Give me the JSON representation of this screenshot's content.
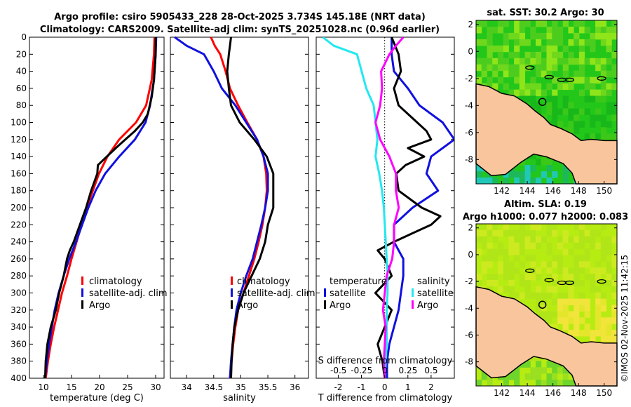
{
  "figure": {
    "title_line1": "Argo profile: csiro 5905433_228 28-Oct-2025 3.734S 145.18E (NRT data)",
    "title_line2": "Climatology: CARS2009. Satellite-adj clim: synTS_20251028.nc (0.96d earlier)",
    "credit": "©IMOS 02-Nov-2025 11:42:15"
  },
  "colors": {
    "climatology": "#ff0000",
    "satellite": "#1010e0",
    "argo": "#000000",
    "t_satellite_diff": "#22e8f0",
    "s_satellite_diff": "#ff00ff",
    "land": "#f9c59c",
    "ocean_sst": "#22c71a",
    "ocean_sla": "#b7ec12"
  },
  "chart_data": [
    {
      "id": "temperature",
      "type": "line",
      "ylabel": "",
      "xlabel": "temperature (deg C)",
      "xlim": [
        7.5,
        31.5
      ],
      "ylim": [
        0,
        400
      ],
      "y_reversed": true,
      "xticks": [
        "10",
        "15",
        "20",
        "25",
        "30"
      ],
      "xtick_values": [
        10,
        15,
        20,
        25,
        30
      ],
      "yticks": [
        "0",
        "20",
        "40",
        "60",
        "80",
        "100",
        "120",
        "140",
        "160",
        "180",
        "200",
        "220",
        "240",
        "260",
        "280",
        "300",
        "320",
        "340",
        "360",
        "380",
        "400"
      ],
      "ytick_values": [
        0,
        20,
        40,
        60,
        80,
        100,
        120,
        140,
        160,
        180,
        200,
        220,
        240,
        260,
        280,
        300,
        320,
        340,
        360,
        380,
        400
      ],
      "legend": {
        "placement": "lower-right",
        "entries": [
          "climatology",
          "satellite-adj. clim",
          "Argo"
        ]
      },
      "series": [
        {
          "name": "climatology",
          "color_key": "climatology",
          "depth": [
            0,
            20,
            50,
            80,
            100,
            120,
            140,
            160,
            180,
            200,
            220,
            240,
            260,
            280,
            300,
            320,
            340,
            360,
            380,
            400
          ],
          "values": [
            29.8,
            29.7,
            29.3,
            28.3,
            26.5,
            23.5,
            21.4,
            19.9,
            18.8,
            17.7,
            16.8,
            15.9,
            15.0,
            14.2,
            13.3,
            12.6,
            11.9,
            11.3,
            10.8,
            10.4
          ]
        },
        {
          "name": "satellite-adj. clim",
          "color_key": "satellite",
          "depth": [
            0,
            20,
            50,
            80,
            100,
            120,
            140,
            160,
            180,
            200,
            220,
            240,
            260,
            280,
            300,
            320,
            340,
            360,
            380,
            400
          ],
          "values": [
            30.1,
            30.0,
            29.7,
            29.0,
            28.2,
            26.3,
            23.5,
            21.0,
            19.3,
            18.0,
            16.9,
            15.8,
            14.6,
            13.6,
            12.7,
            12.0,
            11.5,
            11.0,
            10.6,
            10.3
          ]
        },
        {
          "name": "Argo",
          "color_key": "argo",
          "depth": [
            0,
            20,
            50,
            70,
            90,
            100,
            110,
            120,
            130,
            140,
            150,
            160,
            180,
            200,
            220,
            240,
            250,
            260,
            280,
            300,
            320,
            340,
            360,
            380,
            400
          ],
          "values": [
            30.0,
            30.0,
            29.7,
            29.3,
            28.6,
            27.7,
            26.3,
            24.6,
            22.9,
            21.3,
            19.7,
            19.6,
            18.5,
            17.6,
            16.5,
            15.4,
            14.7,
            14.2,
            13.6,
            12.8,
            12.2,
            11.3,
            10.7,
            10.4,
            10.3
          ]
        }
      ]
    },
    {
      "id": "salinity",
      "type": "line",
      "xlabel": "salinity",
      "xlim": [
        33.7,
        36.25
      ],
      "ylim": [
        0,
        400
      ],
      "y_reversed": true,
      "xticks": [
        "34",
        "34.5",
        "35",
        "35.5",
        "36"
      ],
      "xtick_values": [
        34,
        34.5,
        35,
        35.5,
        36
      ],
      "legend": {
        "placement": "lower-right",
        "entries": [
          "climatology",
          "satellite-adj. clim",
          "Argo"
        ]
      },
      "series": [
        {
          "name": "climatology",
          "color_key": "climatology",
          "depth": [
            0,
            10,
            20,
            40,
            60,
            80,
            100,
            120,
            140,
            160,
            180,
            200,
            220,
            240,
            260,
            280,
            300,
            320,
            340,
            360,
            380,
            400
          ],
          "values": [
            34.45,
            34.52,
            34.62,
            34.72,
            34.8,
            34.95,
            35.12,
            35.3,
            35.42,
            35.47,
            35.48,
            35.45,
            35.4,
            35.33,
            35.25,
            35.15,
            35.05,
            34.95,
            34.9,
            34.86,
            34.83,
            34.8
          ]
        },
        {
          "name": "satellite-adj. clim",
          "color_key": "satellite",
          "depth": [
            0,
            10,
            20,
            40,
            60,
            80,
            100,
            120,
            140,
            160,
            180,
            200,
            220,
            240,
            260,
            280,
            300,
            320,
            340,
            360,
            380,
            400
          ],
          "values": [
            33.78,
            34.0,
            34.32,
            34.5,
            34.65,
            34.9,
            35.1,
            35.3,
            35.42,
            35.5,
            35.5,
            35.45,
            35.38,
            35.3,
            35.22,
            35.1,
            35.0,
            34.92,
            34.88,
            34.85,
            34.82,
            34.8
          ]
        },
        {
          "name": "Argo",
          "color_key": "argo",
          "depth": [
            0,
            10,
            20,
            40,
            60,
            80,
            100,
            120,
            140,
            160,
            180,
            200,
            220,
            240,
            260,
            280,
            300,
            320,
            340,
            360,
            380,
            400
          ],
          "values": [
            34.82,
            34.8,
            34.78,
            34.75,
            34.78,
            34.82,
            34.98,
            35.25,
            35.48,
            35.6,
            35.6,
            35.6,
            35.5,
            35.45,
            35.35,
            35.2,
            35.05,
            34.95,
            34.88,
            34.85,
            34.83,
            34.82
          ]
        }
      ]
    },
    {
      "id": "differences",
      "type": "line",
      "xlabel_bottom": "T difference from climatology",
      "xlabel_top": "S difference from climatology",
      "xlim_t": [
        -2.95,
        3.0
      ],
      "xlim_s": [
        -0.74,
        0.75
      ],
      "ylim": [
        0,
        400
      ],
      "y_reversed": true,
      "xticks_t": [
        "-2",
        "-1",
        "0",
        "1",
        "2"
      ],
      "xtick_values_t": [
        -2,
        -1,
        0,
        1,
        2
      ],
      "xticks_s": [
        "-0.5",
        "-0.25",
        "0",
        "0.25",
        "0.5"
      ],
      "xtick_values_s": [
        -0.5,
        -0.25,
        0,
        0.25,
        0.5
      ],
      "legend_temperature": {
        "title": "temperature",
        "placement": "lower-left",
        "entries": [
          "satellite",
          "Argo"
        ]
      },
      "legend_salinity": {
        "title": "salinity",
        "placement": "lower-right",
        "entries": [
          "satellite",
          "Argo"
        ]
      },
      "series": [
        {
          "name": "T satellite",
          "axis": "t",
          "color_key": "satellite",
          "depth": [
            0,
            20,
            40,
            60,
            80,
            100,
            120,
            140,
            160,
            180,
            200,
            220,
            240,
            260,
            280,
            300,
            320,
            340,
            360,
            380,
            400
          ],
          "values": [
            0.3,
            0.3,
            0.4,
            1.0,
            1.5,
            2.5,
            3.0,
            2.0,
            1.8,
            2.3,
            1.2,
            0.4,
            0.4,
            0.8,
            0.8,
            0.7,
            0.6,
            0.4,
            0.2,
            0.1,
            0.1
          ]
        },
        {
          "name": "T Argo",
          "axis": "t",
          "color_key": "argo",
          "depth": [
            0,
            20,
            40,
            60,
            80,
            100,
            110,
            120,
            130,
            140,
            150,
            160,
            180,
            200,
            210,
            220,
            230,
            240,
            250,
            260,
            280,
            300,
            320,
            340,
            360,
            380,
            400
          ],
          "values": [
            0.3,
            0.6,
            0.7,
            0.4,
            0.6,
            1.4,
            1.8,
            2.0,
            1.0,
            1.7,
            0.9,
            0.5,
            0.6,
            1.6,
            2.4,
            2.0,
            1.2,
            0.4,
            -0.3,
            0.0,
            0.3,
            -0.4,
            0.3,
            0.0,
            -0.3,
            -0.1,
            0.0
          ]
        },
        {
          "name": "S satellite",
          "axis": "s",
          "color_key": "t_satellite_diff",
          "depth": [
            0,
            10,
            20,
            40,
            60,
            80,
            100,
            120,
            140,
            160,
            180,
            200,
            220,
            240,
            260,
            280,
            300,
            320,
            340,
            360,
            380,
            400
          ],
          "values": [
            -0.67,
            -0.55,
            -0.3,
            -0.25,
            -0.2,
            -0.12,
            -0.1,
            -0.08,
            -0.1,
            -0.06,
            -0.03,
            -0.01,
            0.0,
            0.01,
            0.02,
            0.03,
            0.03,
            0.02,
            0.02,
            0.02,
            0.01,
            0.0
          ]
        },
        {
          "name": "S Argo",
          "axis": "s",
          "color_key": "s_satellite_diff",
          "depth": [
            0,
            10,
            20,
            40,
            60,
            80,
            100,
            120,
            140,
            160,
            180,
            200,
            220,
            240,
            260,
            280,
            300,
            320,
            340,
            360,
            380,
            400
          ],
          "values": [
            0.2,
            0.12,
            0.05,
            -0.04,
            -0.03,
            -0.05,
            -0.1,
            -0.05,
            0.05,
            0.12,
            0.12,
            0.15,
            0.1,
            0.1,
            0.08,
            0.02,
            0.0,
            -0.02,
            0.01,
            0.0,
            -0.01,
            0.0
          ]
        }
      ]
    }
  ],
  "maps": [
    {
      "id": "sst-map",
      "title": "sat. SST: 30.2 Argo: 30",
      "lon_range": [
        140,
        151
      ],
      "lat_range": [
        -9.8,
        2.3
      ],
      "xticks": [
        "142",
        "144",
        "146",
        "148",
        "150"
      ],
      "xtick_values": [
        142,
        144,
        146,
        148,
        150
      ],
      "yticks": [
        "2",
        "0",
        "-2",
        "-4",
        "-6",
        "-8"
      ],
      "ytick_values": [
        2,
        0,
        -2,
        -4,
        -6,
        -8
      ],
      "float_position": {
        "lon": 145.18,
        "lat": -3.734
      }
    },
    {
      "id": "sla-map",
      "title_line1": "Altim. SLA: 0.19",
      "title_line2": "Argo h1000: 0.077 h2000: 0.083",
      "lon_range": [
        140,
        151
      ],
      "lat_range": [
        -9.8,
        2.3
      ],
      "xticks": [
        "142",
        "144",
        "146",
        "148",
        "150"
      ],
      "xtick_values": [
        142,
        144,
        146,
        148,
        150
      ],
      "yticks": [
        "2",
        "0",
        "-2",
        "-4",
        "-6",
        "-8"
      ],
      "ytick_values": [
        2,
        0,
        -2,
        -4,
        -6,
        -8
      ],
      "float_position": {
        "lon": 145.18,
        "lat": -3.734
      }
    }
  ]
}
